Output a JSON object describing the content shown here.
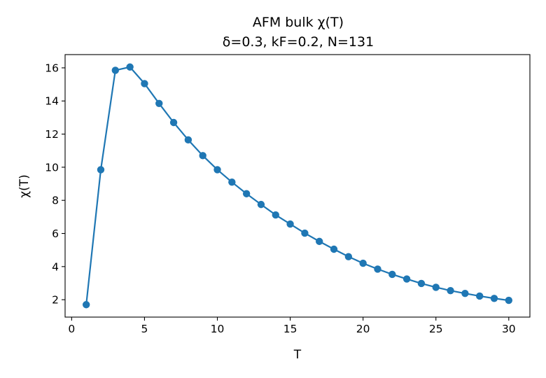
{
  "chart_data": {
    "type": "line",
    "title_lines": [
      "AFM bulk χ(T)",
      "δ=0.3, kF=0.2, N=131"
    ],
    "xlabel": "T",
    "ylabel": "χ(T)",
    "xlim": [
      -0.45,
      31.45
    ],
    "ylim": [
      0.95,
      16.8
    ],
    "xticks": [
      0,
      5,
      10,
      15,
      20,
      25,
      30
    ],
    "yticks": [
      2,
      4,
      6,
      8,
      10,
      12,
      14,
      16
    ],
    "grid": false,
    "series": [
      {
        "color": "#1f77b4",
        "marker": "circle",
        "x": [
          1,
          2,
          3,
          4,
          5,
          6,
          7,
          8,
          9,
          10,
          11,
          12,
          13,
          14,
          15,
          16,
          17,
          18,
          19,
          20,
          21,
          22,
          23,
          24,
          25,
          26,
          27,
          28,
          29,
          30
        ],
        "y": [
          1.7,
          9.85,
          15.85,
          16.05,
          15.05,
          13.85,
          12.7,
          11.65,
          10.7,
          9.85,
          9.1,
          8.4,
          7.75,
          7.12,
          6.57,
          6.02,
          5.52,
          5.05,
          4.6,
          4.2,
          3.85,
          3.53,
          3.25,
          2.98,
          2.75,
          2.55,
          2.38,
          2.22,
          2.08,
          1.96
        ]
      }
    ]
  }
}
